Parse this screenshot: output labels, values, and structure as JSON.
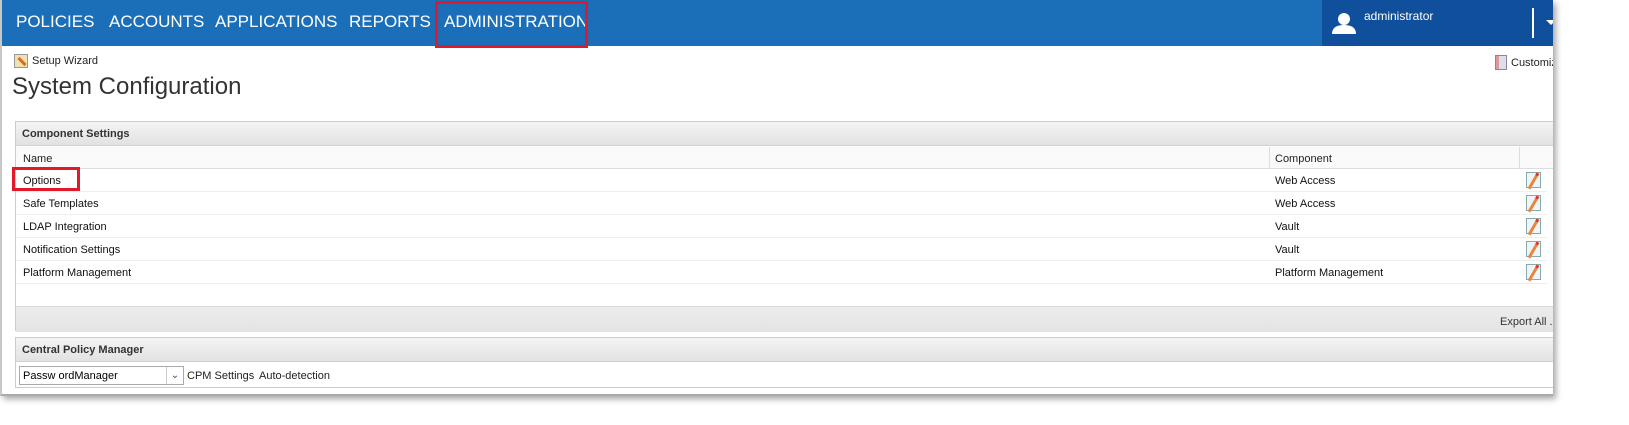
{
  "nav": {
    "items": [
      "POLICIES",
      "ACCOUNTS",
      "APPLICATIONS",
      "REPORTS",
      "ADMINISTRATION"
    ],
    "active": "ADMINISTRATION",
    "user": "administrator"
  },
  "toolbar": {
    "setup_wizard": "Setup Wizard",
    "customize": "Customize"
  },
  "page_title": "System Configuration",
  "component_settings": {
    "title": "Component Settings",
    "columns": [
      "Name",
      "Component"
    ],
    "rows": [
      {
        "name": "Options",
        "component": "Web Access"
      },
      {
        "name": "Safe Templates",
        "component": "Web Access"
      },
      {
        "name": "LDAP Integration",
        "component": "Vault"
      },
      {
        "name": "Notification Settings",
        "component": "Vault"
      },
      {
        "name": "Platform Management",
        "component": "Platform Management"
      }
    ],
    "export_all": "Export All .."
  },
  "cpm": {
    "title": "Central Policy Manager",
    "selected": "Passw ordManager",
    "settings": "CPM Settings",
    "auto_detection": "Auto-detection"
  },
  "colors": {
    "nav": "#1b6fb9",
    "user_area": "#0f4f9b",
    "highlight": "#e0192b"
  }
}
